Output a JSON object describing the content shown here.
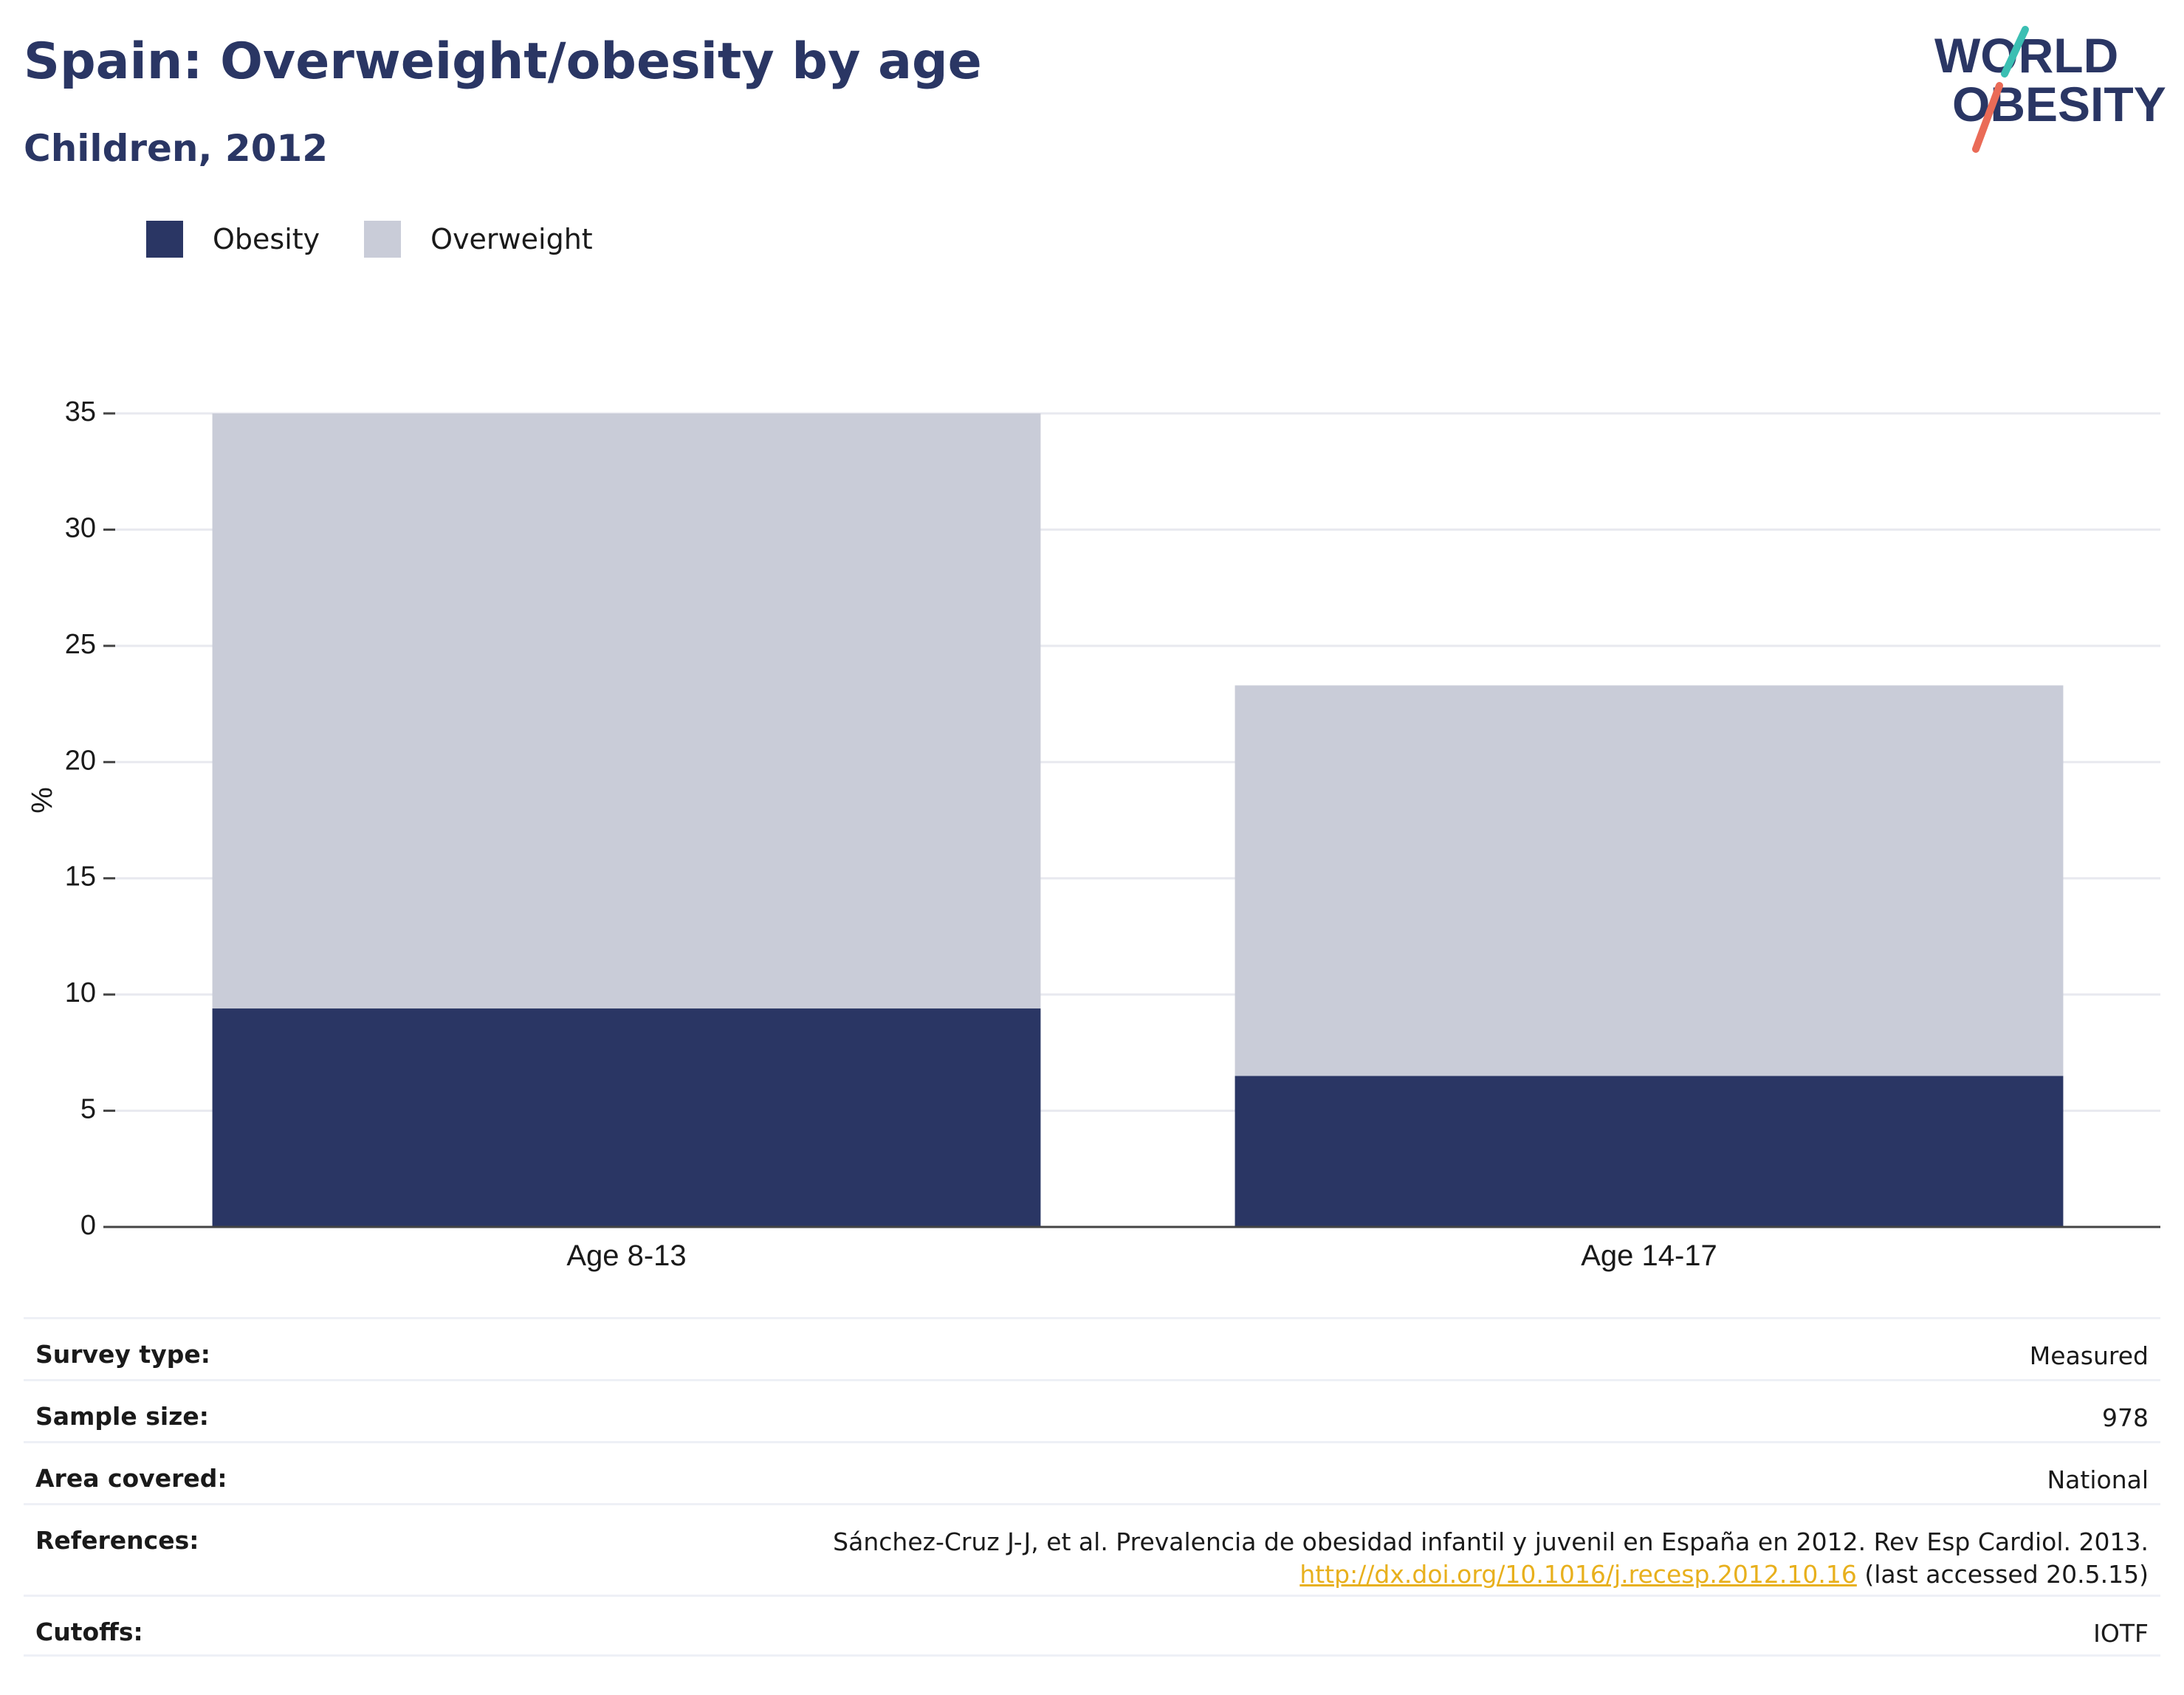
{
  "header": {
    "title": "Spain: Overweight/obesity by age",
    "subtitle": "Children, 2012"
  },
  "logo": {
    "line1": "WORLD",
    "line2": "OBESITY"
  },
  "legend": [
    {
      "label": "Obesity",
      "color": "#2a3664"
    },
    {
      "label": "Overweight",
      "color": "#c9ccd8"
    }
  ],
  "chart_data": {
    "type": "bar",
    "stacked": true,
    "categories": [
      "Age 8-13",
      "Age 14-17"
    ],
    "series": [
      {
        "name": "Obesity",
        "color": "#2a3664",
        "values": [
          9.4,
          6.5
        ]
      },
      {
        "name": "Overweight",
        "color": "#c9ccd8",
        "values": [
          25.6,
          16.8
        ]
      }
    ],
    "totals": [
      35.0,
      23.3
    ],
    "ylabel": "%",
    "xlabel": "",
    "ylim": [
      0,
      35
    ],
    "yticks": [
      0,
      5,
      10,
      15,
      20,
      25,
      30,
      35
    ],
    "grid": true,
    "legend_position": "top-left"
  },
  "info": {
    "survey_type": {
      "label": "Survey type:",
      "value": "Measured"
    },
    "sample_size": {
      "label": "Sample size:",
      "value": "978"
    },
    "area_covered": {
      "label": "Area covered:",
      "value": "National"
    },
    "references": {
      "label": "References:",
      "text": "Sánchez-Cruz J-J, et al. Prevalencia de obesidad infantil y juvenil en España en 2012. Rev Esp Cardiol. 2013.",
      "link": "http://dx.doi.org/10.1016/j.recesp.2012.10.16",
      "suffix": "(last accessed 20.5.15)",
      "link_color": "#e8b01d"
    },
    "cutoffs": {
      "label": "Cutoffs:",
      "value": "IOTF"
    }
  }
}
